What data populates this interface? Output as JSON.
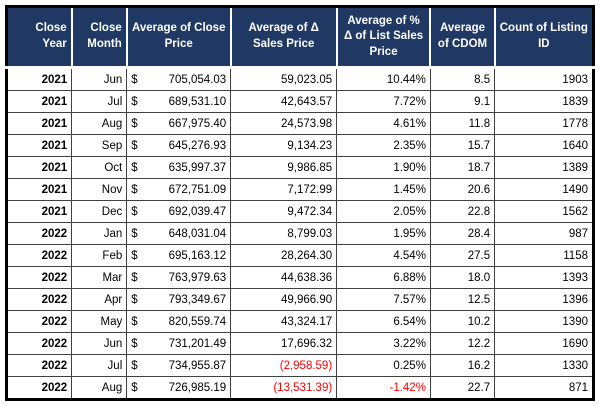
{
  "colors": {
    "header_bg": "#1F3864",
    "header_text": "#FFFFFF",
    "negative_text": "#FF0000",
    "grid_border": "#404040",
    "outer_border": "#000000"
  },
  "table": {
    "currency_symbol": "$",
    "headers": [
      "Close Year",
      "Close Month",
      "Average of Close Price",
      "Average of Δ Sales Price",
      "Average of % Δ of List Sales Price",
      "Average of CDOM",
      "Count of Listing ID"
    ],
    "rows": [
      {
        "year": "2021",
        "month": "Jun",
        "avg_close_price": "705,054.03",
        "avg_delta_sales_price": "59,023.05",
        "avg_pct_delta_list_sales_price": "10.44%",
        "avg_cdom": "8.5",
        "count_listing_id": "1903"
      },
      {
        "year": "2021",
        "month": "Jul",
        "avg_close_price": "689,531.10",
        "avg_delta_sales_price": "42,643.57",
        "avg_pct_delta_list_sales_price": "7.72%",
        "avg_cdom": "9.1",
        "count_listing_id": "1839"
      },
      {
        "year": "2021",
        "month": "Aug",
        "avg_close_price": "667,975.40",
        "avg_delta_sales_price": "24,573.98",
        "avg_pct_delta_list_sales_price": "4.61%",
        "avg_cdom": "11.8",
        "count_listing_id": "1778"
      },
      {
        "year": "2021",
        "month": "Sep",
        "avg_close_price": "645,276.93",
        "avg_delta_sales_price": "9,134.23",
        "avg_pct_delta_list_sales_price": "2.35%",
        "avg_cdom": "15.7",
        "count_listing_id": "1640"
      },
      {
        "year": "2021",
        "month": "Oct",
        "avg_close_price": "635,997.37",
        "avg_delta_sales_price": "9,986.85",
        "avg_pct_delta_list_sales_price": "1.90%",
        "avg_cdom": "18.7",
        "count_listing_id": "1389"
      },
      {
        "year": "2021",
        "month": "Nov",
        "avg_close_price": "672,751.09",
        "avg_delta_sales_price": "7,172.99",
        "avg_pct_delta_list_sales_price": "1.45%",
        "avg_cdom": "20.6",
        "count_listing_id": "1490"
      },
      {
        "year": "2021",
        "month": "Dec",
        "avg_close_price": "692,039.47",
        "avg_delta_sales_price": "9,472.34",
        "avg_pct_delta_list_sales_price": "2.05%",
        "avg_cdom": "22.8",
        "count_listing_id": "1562"
      },
      {
        "year": "2022",
        "month": "Jan",
        "avg_close_price": "648,031.04",
        "avg_delta_sales_price": "8,799.03",
        "avg_pct_delta_list_sales_price": "1.95%",
        "avg_cdom": "28.4",
        "count_listing_id": "987"
      },
      {
        "year": "2022",
        "month": "Feb",
        "avg_close_price": "695,163.12",
        "avg_delta_sales_price": "28,264.30",
        "avg_pct_delta_list_sales_price": "4.54%",
        "avg_cdom": "27.5",
        "count_listing_id": "1158"
      },
      {
        "year": "2022",
        "month": "Mar",
        "avg_close_price": "763,979.63",
        "avg_delta_sales_price": "44,638.36",
        "avg_pct_delta_list_sales_price": "6.88%",
        "avg_cdom": "18.0",
        "count_listing_id": "1393"
      },
      {
        "year": "2022",
        "month": "Apr",
        "avg_close_price": "793,349.67",
        "avg_delta_sales_price": "49,966.90",
        "avg_pct_delta_list_sales_price": "7.57%",
        "avg_cdom": "12.5",
        "count_listing_id": "1396"
      },
      {
        "year": "2022",
        "month": "May",
        "avg_close_price": "820,559.74",
        "avg_delta_sales_price": "43,324.17",
        "avg_pct_delta_list_sales_price": "6.54%",
        "avg_cdom": "10.2",
        "count_listing_id": "1390"
      },
      {
        "year": "2022",
        "month": "Jun",
        "avg_close_price": "731,201.49",
        "avg_delta_sales_price": "17,696.32",
        "avg_pct_delta_list_sales_price": "3.22%",
        "avg_cdom": "12.2",
        "count_listing_id": "1690"
      },
      {
        "year": "2022",
        "month": "Jul",
        "avg_close_price": "734,955.87",
        "avg_delta_sales_price": "(2,958.59)",
        "avg_pct_delta_list_sales_price": "0.25%",
        "avg_cdom": "16.2",
        "count_listing_id": "1330"
      },
      {
        "year": "2022",
        "month": "Aug",
        "avg_close_price": "726,985.19",
        "avg_delta_sales_price": "(13,531.39)",
        "avg_pct_delta_list_sales_price": "-1.42%",
        "avg_cdom": "22.7",
        "count_listing_id": "871"
      }
    ]
  }
}
